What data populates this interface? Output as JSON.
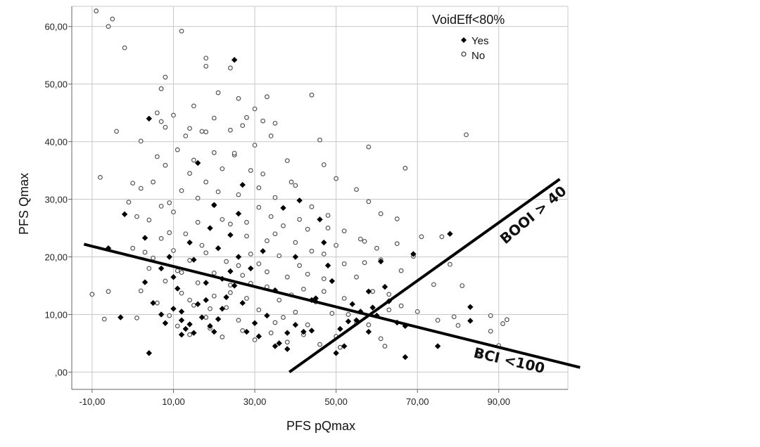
{
  "chart_data": {
    "type": "scatter",
    "xlabel": "PFS pQmax",
    "ylabel": "PFS Qmax",
    "xlim": [
      -15,
      107
    ],
    "ylim": [
      -3,
      63.5
    ],
    "x_ticks": [
      -10,
      10,
      30,
      50,
      70,
      90
    ],
    "x_tick_labels": [
      "-10,00",
      "10,00",
      "30,00",
      "50,00",
      "70,00",
      "90,00"
    ],
    "y_ticks": [
      0,
      10,
      20,
      30,
      40,
      50,
      60
    ],
    "y_tick_labels": [
      ",00",
      "10,00",
      "20,00",
      "30,00",
      "40,00",
      "50,00",
      "60,00"
    ],
    "grid": true,
    "legend": {
      "title": "VoidEff<80%",
      "placement": "top-right",
      "entries": [
        {
          "label": "Yes",
          "marker": "filled-diamond"
        },
        {
          "label": "No",
          "marker": "open-circle"
        }
      ]
    },
    "series": [
      {
        "name": "Yes",
        "marker": "filled-diamond",
        "color": "#000000",
        "points": [
          [
            25,
            54.2
          ],
          [
            4,
            44
          ],
          [
            -2,
            27.4
          ],
          [
            -6,
            21.5
          ],
          [
            -3,
            9.5
          ],
          [
            3,
            15.6
          ],
          [
            4,
            3.3
          ],
          [
            3,
            23.3
          ],
          [
            7,
            18
          ],
          [
            5,
            12
          ],
          [
            8,
            8.5
          ],
          [
            10,
            11
          ],
          [
            12,
            9
          ],
          [
            13,
            7.5
          ],
          [
            14,
            8.3
          ],
          [
            15,
            6.8
          ],
          [
            12,
            10.5
          ],
          [
            16,
            11.8
          ],
          [
            11,
            14.5
          ],
          [
            18,
            12.5
          ],
          [
            17,
            9.5
          ],
          [
            19,
            8
          ],
          [
            20,
            7
          ],
          [
            21,
            9.2
          ],
          [
            22,
            11
          ],
          [
            23,
            13
          ],
          [
            18,
            15.5
          ],
          [
            22,
            16.2
          ],
          [
            24,
            17.5
          ],
          [
            25,
            15
          ],
          [
            26,
            20
          ],
          [
            21,
            21.5
          ],
          [
            24,
            23.8
          ],
          [
            16,
            36.3
          ],
          [
            27,
            32.5
          ],
          [
            20,
            29
          ],
          [
            28,
            7
          ],
          [
            30,
            8.5
          ],
          [
            31,
            6.2
          ],
          [
            33,
            9.8
          ],
          [
            35,
            4.5
          ],
          [
            36,
            5
          ],
          [
            38,
            6.8
          ],
          [
            40,
            8.2
          ],
          [
            42,
            7
          ],
          [
            44,
            7.2
          ],
          [
            46,
            26.5
          ],
          [
            47,
            22.5
          ],
          [
            48,
            18.5
          ],
          [
            49,
            15.8
          ],
          [
            50,
            3.3
          ],
          [
            51,
            7.5
          ],
          [
            52,
            4.5
          ],
          [
            53,
            8.8
          ],
          [
            55,
            9
          ],
          [
            56,
            10.5
          ],
          [
            58,
            14
          ],
          [
            59,
            11.2
          ],
          [
            60,
            9.8
          ],
          [
            61,
            19.2
          ],
          [
            62,
            14.8
          ],
          [
            63,
            12.3
          ],
          [
            65,
            8.6
          ],
          [
            67,
            8
          ],
          [
            67,
            2.6
          ],
          [
            69,
            20.5
          ],
          [
            75,
            4.5
          ],
          [
            78,
            24
          ],
          [
            83,
            11.3
          ],
          [
            83,
            8.9
          ],
          [
            41,
            29.8
          ],
          [
            37,
            28.5
          ],
          [
            40,
            20
          ],
          [
            44,
            12.5
          ],
          [
            32,
            21
          ],
          [
            29,
            18
          ],
          [
            14,
            22.5
          ],
          [
            9,
            20
          ],
          [
            27,
            12
          ],
          [
            35,
            14.2
          ],
          [
            15,
            19.5
          ],
          [
            19,
            25
          ],
          [
            26,
            27.5
          ],
          [
            10,
            16.5
          ],
          [
            45,
            12.8
          ],
          [
            54,
            11.8
          ],
          [
            58,
            7
          ],
          [
            12,
            6.5
          ],
          [
            7,
            10
          ],
          [
            38,
            4
          ]
        ]
      },
      {
        "name": "No",
        "marker": "open-circle",
        "color": "#555555",
        "points": [
          [
            -9,
            62.7
          ],
          [
            -5,
            61.3
          ],
          [
            -6,
            60
          ],
          [
            12,
            59.2
          ],
          [
            -2,
            56.3
          ],
          [
            18,
            54.5
          ],
          [
            18,
            53.1
          ],
          [
            24,
            52.8
          ],
          [
            8,
            51.2
          ],
          [
            7,
            49.2
          ],
          [
            21,
            48.5
          ],
          [
            33,
            47.8
          ],
          [
            44,
            48.1
          ],
          [
            26,
            47.5
          ],
          [
            15,
            46.2
          ],
          [
            30,
            45.7
          ],
          [
            6,
            45
          ],
          [
            10,
            44.6
          ],
          [
            7,
            43.5
          ],
          [
            20,
            44.1
          ],
          [
            28,
            44.2
          ],
          [
            32,
            43.6
          ],
          [
            35,
            43.2
          ],
          [
            8,
            42.5
          ],
          [
            14,
            42.3
          ],
          [
            27,
            42.8
          ],
          [
            24,
            42
          ],
          [
            17,
            41.8
          ],
          [
            -4,
            41.8
          ],
          [
            13,
            41
          ],
          [
            34,
            41
          ],
          [
            46,
            40.3
          ],
          [
            82,
            41.2
          ],
          [
            58,
            39.1
          ],
          [
            2,
            40.1
          ],
          [
            30,
            39.4
          ],
          [
            11,
            38.6
          ],
          [
            20,
            38.1
          ],
          [
            25,
            37.7
          ],
          [
            6,
            37.4
          ],
          [
            38,
            36.7
          ],
          [
            47,
            36
          ],
          [
            8,
            35.9
          ],
          [
            22,
            35.3
          ],
          [
            29,
            35
          ],
          [
            -8,
            33.8
          ],
          [
            14,
            34.5
          ],
          [
            32,
            34.4
          ],
          [
            67,
            35.4
          ],
          [
            50,
            33.6
          ],
          [
            0,
            32.8
          ],
          [
            18,
            33
          ],
          [
            40,
            32.4
          ],
          [
            2,
            31.9
          ],
          [
            12,
            31.5
          ],
          [
            55,
            31.7
          ],
          [
            26,
            30.8
          ],
          [
            35,
            30.3
          ],
          [
            -1,
            29.5
          ],
          [
            9,
            29.4
          ],
          [
            20,
            29
          ],
          [
            31,
            28.6
          ],
          [
            44,
            28.7
          ],
          [
            58,
            29.6
          ],
          [
            61,
            27.5
          ],
          [
            48,
            27.2
          ],
          [
            65,
            26.6
          ],
          [
            1,
            27
          ],
          [
            4,
            26.4
          ],
          [
            16,
            26
          ],
          [
            24,
            25.7
          ],
          [
            37,
            25.4
          ],
          [
            43,
            24.8
          ],
          [
            52,
            24.5
          ],
          [
            13,
            24
          ],
          [
            28,
            23.6
          ],
          [
            7,
            23.2
          ],
          [
            33,
            22.8
          ],
          [
            40,
            22.5
          ],
          [
            57,
            22.7
          ],
          [
            65,
            22.3
          ],
          [
            76,
            23.5
          ],
          [
            71,
            23.5
          ],
          [
            0,
            21.5
          ],
          [
            10,
            21.1
          ],
          [
            18,
            20.7
          ],
          [
            29,
            20.5
          ],
          [
            36,
            20.2
          ],
          [
            47,
            20.5
          ],
          [
            5,
            19.8
          ],
          [
            14,
            19.4
          ],
          [
            23,
            19.2
          ],
          [
            31,
            18.8
          ],
          [
            41,
            18.5
          ],
          [
            52,
            18.8
          ],
          [
            61,
            19.5
          ],
          [
            4,
            18
          ],
          [
            11,
            17.6
          ],
          [
            20,
            17.2
          ],
          [
            27,
            16.8
          ],
          [
            38,
            16.5
          ],
          [
            47,
            16.2
          ],
          [
            55,
            16.5
          ],
          [
            8,
            15.8
          ],
          [
            16,
            15.5
          ],
          [
            24,
            15.1
          ],
          [
            33,
            14.8
          ],
          [
            42,
            14.4
          ],
          [
            -10,
            13.5
          ],
          [
            -6,
            14
          ],
          [
            2,
            14.1
          ],
          [
            12,
            13.7
          ],
          [
            20,
            13.2
          ],
          [
            28,
            12.8
          ],
          [
            36,
            12.5
          ],
          [
            45,
            12.2
          ],
          [
            52,
            12.8
          ],
          [
            6,
            12
          ],
          [
            15,
            11.6
          ],
          [
            23,
            11.2
          ],
          [
            31,
            10.8
          ],
          [
            40,
            10.4
          ],
          [
            49,
            10.2
          ],
          [
            63,
            10.8
          ],
          [
            70,
            10.5
          ],
          [
            79,
            9.6
          ],
          [
            -7,
            9.2
          ],
          [
            1,
            9.4
          ],
          [
            9,
            9.8
          ],
          [
            18,
            9.5
          ],
          [
            26,
            9
          ],
          [
            35,
            8.6
          ],
          [
            43,
            8.2
          ],
          [
            55,
            8.5
          ],
          [
            75,
            9
          ],
          [
            88,
            9.8
          ],
          [
            92,
            9.1
          ],
          [
            11,
            8
          ],
          [
            19,
            7.6
          ],
          [
            27,
            7.2
          ],
          [
            34,
            6.8
          ],
          [
            42,
            6.5
          ],
          [
            50,
            6.2
          ],
          [
            80,
            8.1
          ],
          [
            88,
            7.1
          ],
          [
            91,
            8.4
          ],
          [
            14,
            6.5
          ],
          [
            22,
            6.1
          ],
          [
            30,
            5.6
          ],
          [
            38,
            5.2
          ],
          [
            46,
            4.8
          ],
          [
            51,
            4.3
          ],
          [
            61,
            5.8
          ],
          [
            62,
            4.5
          ],
          [
            85,
            3.2
          ],
          [
            90,
            4.6
          ],
          [
            58,
            8.2
          ],
          [
            66,
            17.6
          ],
          [
            74,
            15.2
          ],
          [
            81,
            15
          ],
          [
            78,
            18.7
          ],
          [
            69,
            20.1
          ],
          [
            60,
            21.5
          ],
          [
            56,
            23.1
          ],
          [
            48,
            25
          ],
          [
            39,
            33
          ],
          [
            25,
            38
          ],
          [
            15,
            36.8
          ],
          [
            5,
            33
          ],
          [
            21,
            31.3
          ],
          [
            34,
            27
          ],
          [
            44,
            21
          ],
          [
            59,
            14
          ],
          [
            10,
            27.8
          ],
          [
            17,
            22
          ],
          [
            26,
            18.5
          ],
          [
            39,
            13.4
          ],
          [
            53,
            10
          ],
          [
            3,
            20.8
          ],
          [
            12,
            17.3
          ],
          [
            29,
            15.4
          ],
          [
            43,
            17
          ],
          [
            35,
            24
          ],
          [
            22,
            26.5
          ],
          [
            7,
            28.8
          ],
          [
            31,
            32
          ],
          [
            18,
            41.7
          ],
          [
            24,
            13.8
          ],
          [
            14,
            12.5
          ],
          [
            37,
            9.5
          ],
          [
            47,
            14
          ],
          [
            9,
            24.2
          ],
          [
            16,
            30.2
          ],
          [
            28,
            26
          ],
          [
            41,
            26.5
          ],
          [
            50,
            22
          ],
          [
            63,
            13.5
          ],
          [
            66,
            11.5
          ],
          [
            57,
            19
          ],
          [
            33,
            17.4
          ],
          [
            19,
            11
          ]
        ]
      }
    ],
    "reference_lines": [
      {
        "label": "BCI <100",
        "from": [
          -12,
          22.2
        ],
        "to": [
          110,
          0.8
        ]
      },
      {
        "label": "BOOI > 40",
        "from": [
          38.5,
          0
        ],
        "to": [
          105,
          33.5
        ]
      }
    ]
  }
}
